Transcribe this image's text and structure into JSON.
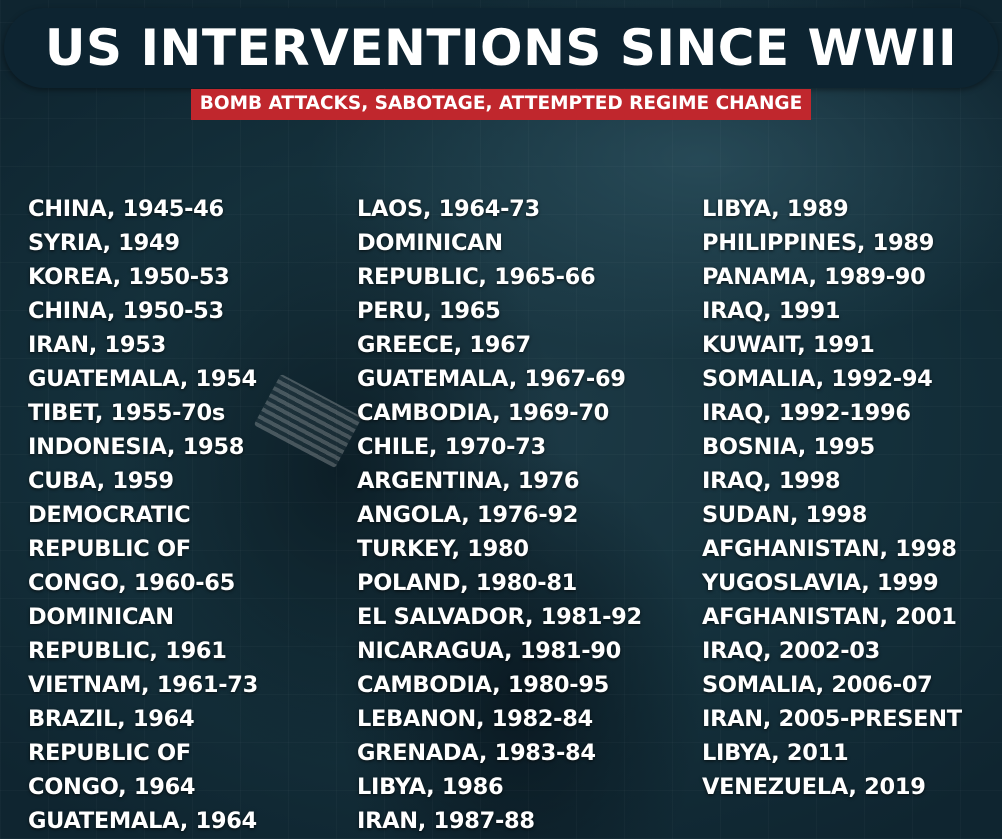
{
  "header": {
    "title": "US INTERVENTIONS SINCE WWII",
    "subtitle": "BOMB ATTACKS, SABOTAGE, ATTEMPTED REGIME CHANGE"
  },
  "colors": {
    "title_bar": "#0d2431",
    "subtitle_bg": "#c0272d",
    "text": "#ffffff",
    "background": "#1d3a46"
  },
  "columns": [
    [
      "CHINA, 1945-46",
      "SYRIA, 1949",
      "KOREA, 1950-53",
      "CHINA, 1950-53",
      "IRAN, 1953",
      "GUATEMALA, 1954",
      "TIBET, 1955-70s",
      "INDONESIA, 1958",
      "CUBA, 1959",
      "DEMOCRATIC",
      "REPUBLIC OF",
      "CONGO, 1960-65",
      "DOMINICAN",
      "REPUBLIC, 1961",
      "VIETNAM, 1961-73",
      "BRAZIL, 1964",
      "REPUBLIC OF",
      "CONGO, 1964",
      "GUATEMALA, 1964"
    ],
    [
      "LAOS, 1964-73",
      "DOMINICAN",
      "REPUBLIC, 1965-66",
      "PERU, 1965",
      "GREECE, 1967",
      "GUATEMALA, 1967-69",
      "CAMBODIA, 1969-70",
      "CHILE, 1970-73",
      "ARGENTINA, 1976",
      "ANGOLA, 1976-92",
      "TURKEY, 1980",
      "POLAND, 1980-81",
      "EL SALVADOR, 1981-92",
      "NICARAGUA, 1981-90",
      "CAMBODIA, 1980-95",
      "LEBANON, 1982-84",
      "GRENADA, 1983-84",
      "LIBYA, 1986",
      "IRAN, 1987-88"
    ],
    [
      "LIBYA, 1989",
      "PHILIPPINES, 1989",
      "PANAMA, 1989-90",
      "IRAQ, 1991",
      "KUWAIT, 1991",
      "SOMALIA, 1992-94",
      "IRAQ, 1992-1996",
      "BOSNIA, 1995",
      "IRAQ, 1998",
      "SUDAN, 1998",
      "AFGHANISTAN, 1998",
      "YUGOSLAVIA, 1999",
      "AFGHANISTAN, 2001",
      "IRAQ, 2002-03",
      "SOMALIA, 2006-07",
      "IRAN, 2005-PRESENT",
      "LIBYA, 2011",
      "VENEZUELA, 2019"
    ]
  ]
}
